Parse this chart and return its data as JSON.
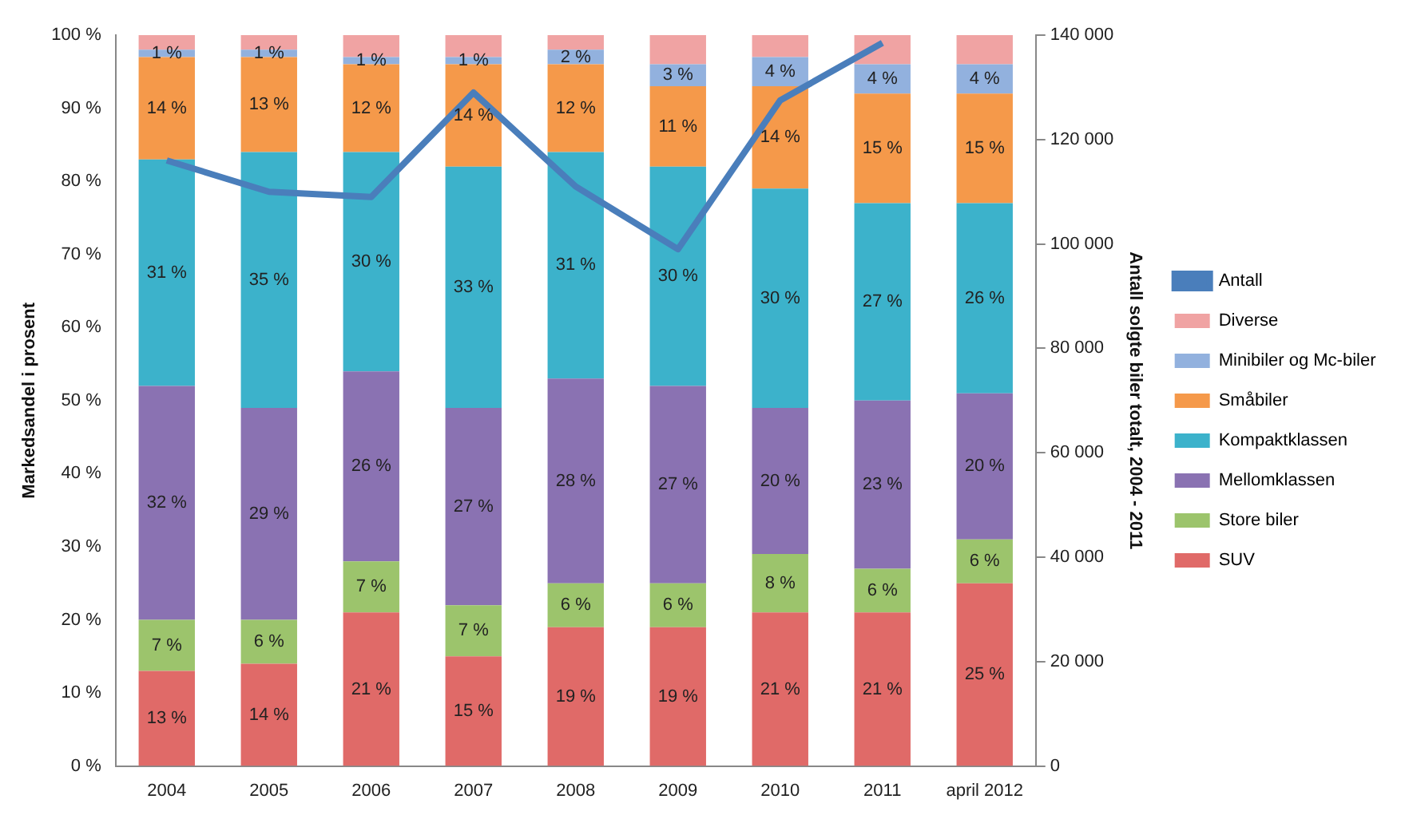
{
  "chart_data": {
    "type": "bar",
    "stacked": true,
    "ylabel": "Markedsandel i prosent",
    "y2label": "Antall solgte biler totalt, 2004 - 2011",
    "categories": [
      "2004",
      "2005",
      "2006",
      "2007",
      "2008",
      "2009",
      "2010",
      "2011",
      "april 2012"
    ],
    "ylim": [
      0,
      100
    ],
    "yticks": [
      {
        "value": 0,
        "label": "0 %"
      },
      {
        "value": 10,
        "label": "10 %"
      },
      {
        "value": 20,
        "label": "20 %"
      },
      {
        "value": 30,
        "label": "30 %"
      },
      {
        "value": 40,
        "label": "40 %"
      },
      {
        "value": 50,
        "label": "50 %"
      },
      {
        "value": 60,
        "label": "60 %"
      },
      {
        "value": 70,
        "label": "70 %"
      },
      {
        "value": 80,
        "label": "80 %"
      },
      {
        "value": 90,
        "label": "90 %"
      },
      {
        "value": 100,
        "label": "100 %"
      }
    ],
    "y2lim": [
      0,
      140000
    ],
    "y2ticks": [
      {
        "value": 0,
        "label": "0"
      },
      {
        "value": 20000,
        "label": "20 000"
      },
      {
        "value": 40000,
        "label": "40 000"
      },
      {
        "value": 60000,
        "label": "60 000"
      },
      {
        "value": 80000,
        "label": "80 000"
      },
      {
        "value": 100000,
        "label": "100 000"
      },
      {
        "value": 120000,
        "label": "120 000"
      },
      {
        "value": 140000,
        "label": "140 000"
      }
    ],
    "legend": "right",
    "series": [
      {
        "name": "SUV",
        "color": "#e06a68",
        "values": [
          13,
          14,
          21,
          15,
          19,
          19,
          21,
          21,
          25
        ],
        "value_labels": [
          "13 %",
          "14 %",
          "21 %",
          "15 %",
          "19 %",
          "19 %",
          "21 %",
          "21 %",
          "25 %"
        ]
      },
      {
        "name": "Store biler",
        "color": "#9cc46c",
        "values": [
          7,
          6,
          7,
          7,
          6,
          6,
          8,
          6,
          6
        ],
        "value_labels": [
          "7 %",
          "6 %",
          "7 %",
          "7 %",
          "6 %",
          "6 %",
          "8 %",
          "6 %",
          "6 %"
        ]
      },
      {
        "name": "Mellomklassen",
        "color": "#8a72b2",
        "values": [
          32,
          29,
          26,
          27,
          28,
          27,
          20,
          23,
          20
        ],
        "value_labels": [
          "32 %",
          "29 %",
          "26 %",
          "27 %",
          "28 %",
          "27 %",
          "20 %",
          "23 %",
          "20 %"
        ]
      },
      {
        "name": "Kompaktklassen",
        "color": "#3cb2cb",
        "values": [
          31,
          35,
          30,
          33,
          31,
          30,
          30,
          27,
          26
        ],
        "value_labels": [
          "31 %",
          "35 %",
          "30 %",
          "33 %",
          "31 %",
          "30 %",
          "30 %",
          "27 %",
          "26 %"
        ]
      },
      {
        "name": "Småbiler",
        "color": "#f5994a",
        "values": [
          14,
          13,
          12,
          14,
          12,
          11,
          14,
          15,
          15
        ],
        "value_labels": [
          "14 %",
          "13 %",
          "12 %",
          "14 %",
          "12 %",
          "11 %",
          "14 %",
          "15 %",
          "15 %"
        ]
      },
      {
        "name": "Minibiler og Mc-biler",
        "color": "#92b1de",
        "values": [
          1,
          1,
          1,
          1,
          2,
          3,
          4,
          4,
          4
        ],
        "value_labels": [
          "1 %",
          "1 %",
          "1 %",
          "1 %",
          "2 %",
          "3 %",
          "4 %",
          "4 %",
          "4 %"
        ]
      },
      {
        "name": "Diverse",
        "color": "#f0a3a3",
        "values": [
          2,
          2,
          3,
          3,
          2,
          4,
          3,
          4,
          4
        ]
      },
      {
        "name": "Antall",
        "type": "line",
        "axis": "y2",
        "color": "#4a7ebb",
        "values": [
          116000,
          110000,
          109000,
          129000,
          111000,
          99000,
          127500,
          138500,
          null
        ]
      }
    ]
  }
}
